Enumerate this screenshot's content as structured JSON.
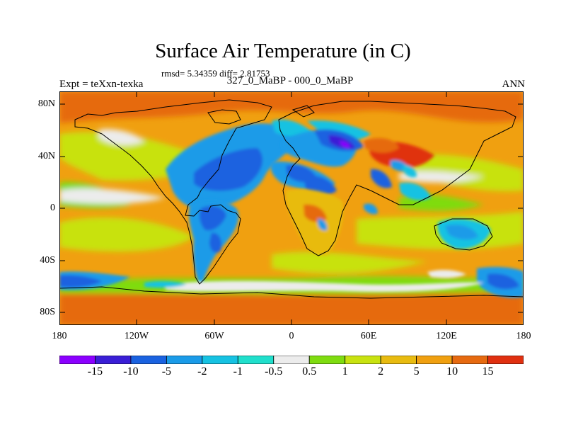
{
  "title": "Surface Air Temperature (in C)",
  "stats": "rmsd= 5.34359 diff= 2.81753",
  "experiment": "Expt = teXxn-texka",
  "difference_name": "327_0_MaBP - 000_0_MaBP",
  "season": "ANN",
  "axes": {
    "lat_ticks": [
      "80N",
      "40N",
      "0",
      "40S",
      "80S"
    ],
    "lon_ticks": [
      "180",
      "120W",
      "60W",
      "0",
      "60E",
      "120E",
      "180"
    ]
  },
  "colorbar": {
    "labels": [
      "-15",
      "-10",
      "-5",
      "-2",
      "-1",
      "-0.5",
      "0.5",
      "1",
      "2",
      "5",
      "10",
      "15"
    ],
    "colors": [
      "#8b00ff",
      "#3a1ed6",
      "#1a62e0",
      "#1a9be8",
      "#16c2e2",
      "#20dfcc",
      "#ececec",
      "#7fdc10",
      "#c8e210",
      "#e8bb10",
      "#f0a010",
      "#e66a10",
      "#e03010"
    ]
  },
  "icons": [
    "map-field",
    "colorbar"
  ]
}
